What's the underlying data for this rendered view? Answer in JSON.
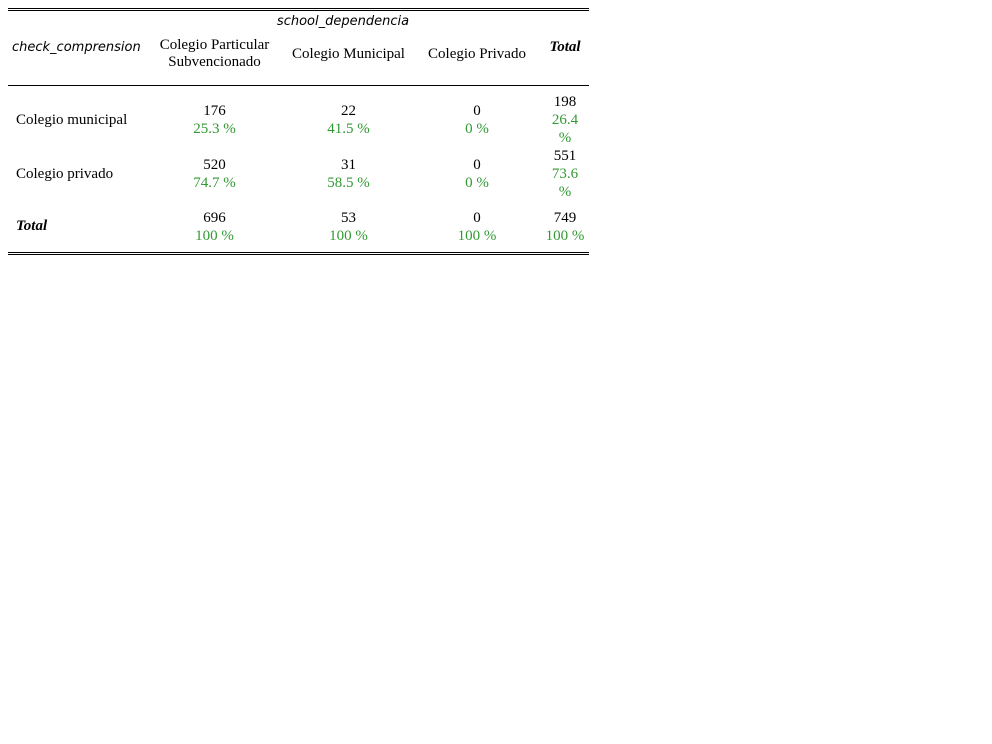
{
  "col_variable": "school_dependencia",
  "row_variable": "check_comprension",
  "col_headers": {
    "c1_line1": "Colegio Particular",
    "c1_line2": "Subvencionado",
    "c2": "Colegio Municipal",
    "c3": "Colegio Privado",
    "total": "Total"
  },
  "rows": [
    {
      "label": "Colegio municipal",
      "cells": [
        {
          "n": "176",
          "pct": "25.3 %"
        },
        {
          "n": "22",
          "pct": "41.5 %"
        },
        {
          "n": "0",
          "pct": "0 %"
        },
        {
          "n": "198",
          "pct": "26.4 %"
        }
      ]
    },
    {
      "label": "Colegio privado",
      "cells": [
        {
          "n": "520",
          "pct": "74.7 %"
        },
        {
          "n": "31",
          "pct": "58.5 %"
        },
        {
          "n": "0",
          "pct": "0 %"
        },
        {
          "n": "551",
          "pct": "73.6 %"
        }
      ]
    },
    {
      "label": "Total",
      "cells": [
        {
          "n": "696",
          "pct": "100 %"
        },
        {
          "n": "53",
          "pct": "100 %"
        },
        {
          "n": "0",
          "pct": "100 %"
        },
        {
          "n": "749",
          "pct": "100 %"
        }
      ]
    }
  ],
  "colors": {
    "percent_text": "#339933",
    "count_text": "#000000",
    "rule": "#000000"
  }
}
